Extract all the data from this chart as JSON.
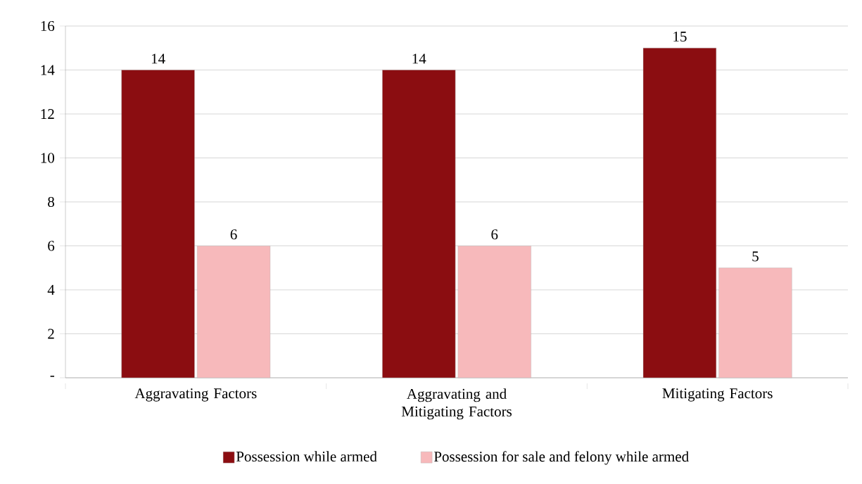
{
  "chart_data": {
    "type": "bar",
    "categories": [
      "Aggravating Factors",
      "Aggravating and Mitigating Factors",
      "Mitigating Factors"
    ],
    "series": [
      {
        "name": "Possession while armed",
        "color": "#8b0d11",
        "values": [
          14,
          14,
          15
        ]
      },
      {
        "name": "Possession for sale and felony while armed",
        "color": "#f7b9bb",
        "values": [
          6,
          6,
          5
        ]
      }
    ],
    "ylim": [
      0,
      16
    ],
    "yticks": [
      {
        "value": 0,
        "label": "-"
      },
      2,
      4,
      6,
      8,
      10,
      12,
      14,
      16
    ],
    "grid": "y",
    "legend": "bottom",
    "data_labels": true
  }
}
